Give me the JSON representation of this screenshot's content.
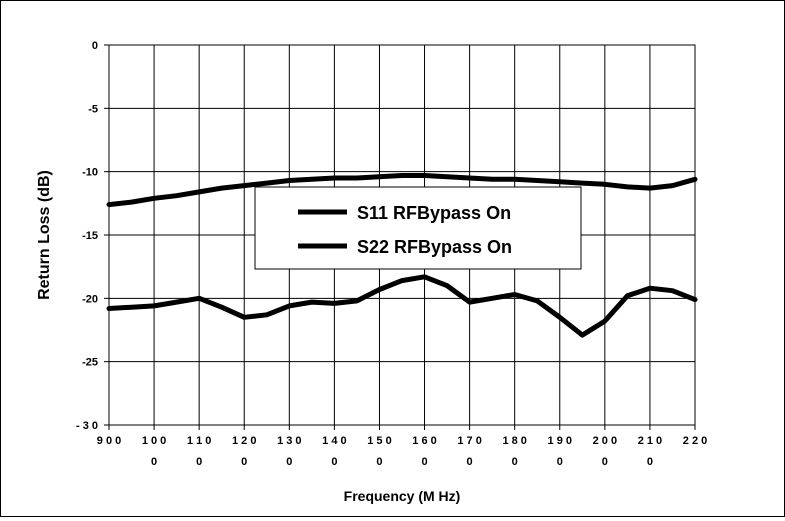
{
  "chart_data": {
    "type": "line",
    "title": "",
    "xlabel": "Frequency (M Hz)",
    "ylabel": "Return Loss (dB)",
    "xlim": [
      900,
      2200
    ],
    "ylim": [
      -30,
      0
    ],
    "grid": true,
    "legend_position": "center",
    "x_ticks": [
      900,
      1000,
      1100,
      1200,
      1300,
      1400,
      1500,
      1600,
      1700,
      1800,
      1900,
      2000,
      2100,
      2200
    ],
    "x_tick_labels": [
      [
        "9 0 0",
        ""
      ],
      [
        "1 0 0",
        "0"
      ],
      [
        "1 1 0",
        "0"
      ],
      [
        "1 2 0",
        "0"
      ],
      [
        "1 3 0",
        "0"
      ],
      [
        "1 4 0",
        "0"
      ],
      [
        "1 5 0",
        "0"
      ],
      [
        "1 6 0",
        "0"
      ],
      [
        "1 7 0",
        "0"
      ],
      [
        "1 8 0",
        "0"
      ],
      [
        "1 9 0",
        "0"
      ],
      [
        "2 0 0",
        "0"
      ],
      [
        "2 1 0",
        "0"
      ],
      [
        "2 2 0",
        ""
      ]
    ],
    "y_ticks": [
      0,
      -5,
      -10,
      -15,
      -20,
      -25,
      -30
    ],
    "y_tick_labels": [
      "0",
      "-5",
      "-10",
      "-15",
      "-20",
      "-25",
      "- 3 0"
    ],
    "series": [
      {
        "name": "S11 RFBypass On",
        "color": "#000000",
        "x": [
          900,
          950,
          1000,
          1050,
          1100,
          1150,
          1200,
          1250,
          1300,
          1350,
          1400,
          1450,
          1500,
          1550,
          1600,
          1650,
          1700,
          1750,
          1800,
          1850,
          1900,
          1950,
          2000,
          2050,
          2100,
          2150,
          2200
        ],
        "y": [
          -12.6,
          -12.4,
          -12.1,
          -11.9,
          -11.6,
          -11.3,
          -11.1,
          -10.9,
          -10.7,
          -10.6,
          -10.5,
          -10.5,
          -10.4,
          -10.3,
          -10.3,
          -10.4,
          -10.5,
          -10.6,
          -10.6,
          -10.7,
          -10.8,
          -10.9,
          -11.0,
          -11.2,
          -11.3,
          -11.1,
          -10.6
        ]
      },
      {
        "name": "S22 RFBypass On",
        "color": "#000000",
        "x": [
          900,
          950,
          1000,
          1050,
          1100,
          1150,
          1200,
          1250,
          1300,
          1350,
          1400,
          1450,
          1500,
          1550,
          1600,
          1650,
          1700,
          1750,
          1800,
          1850,
          1900,
          1950,
          2000,
          2050,
          2100,
          2150,
          2200
        ],
        "y": [
          -20.8,
          -20.7,
          -20.6,
          -20.3,
          -20.0,
          -20.7,
          -21.5,
          -21.3,
          -20.6,
          -20.3,
          -20.4,
          -20.2,
          -19.3,
          -18.6,
          -18.3,
          -19.0,
          -20.3,
          -20.0,
          -19.7,
          -20.2,
          -21.5,
          -22.9,
          -21.8,
          -19.8,
          -19.2,
          -19.4,
          -20.1
        ]
      }
    ]
  }
}
